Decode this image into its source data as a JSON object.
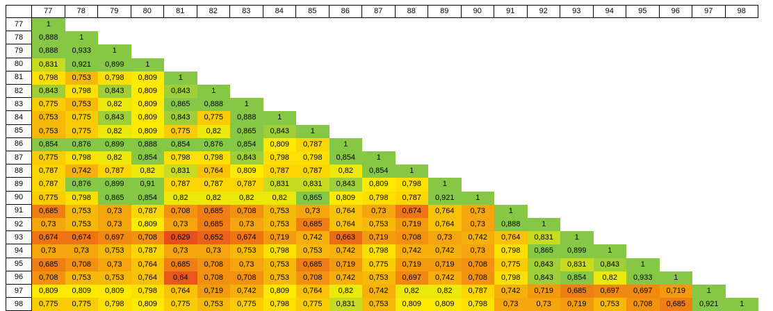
{
  "chart_data": {
    "type": "heatmap",
    "labels": [
      "77",
      "78",
      "79",
      "80",
      "81",
      "82",
      "83",
      "84",
      "85",
      "86",
      "87",
      "88",
      "89",
      "90",
      "91",
      "92",
      "93",
      "94",
      "95",
      "96",
      "97",
      "98"
    ],
    "values": [
      [
        "1"
      ],
      [
        "0,888",
        "1"
      ],
      [
        "0,888",
        "0,933",
        "1"
      ],
      [
        "0,831",
        "0,921",
        "0,899",
        "1"
      ],
      [
        "0,798",
        "0,753",
        "0,798",
        "0,809",
        "1"
      ],
      [
        "0,843",
        "0,798",
        "0,843",
        "0,809",
        "0,843",
        "1"
      ],
      [
        "0,775",
        "0,753",
        "0,82",
        "0,809",
        "0,865",
        "0,888",
        "1"
      ],
      [
        "0,753",
        "0,775",
        "0,843",
        "0,809",
        "0,843",
        "0,775",
        "0,888",
        "1"
      ],
      [
        "0,753",
        "0,775",
        "0,82",
        "0,809",
        "0,775",
        "0,82",
        "0,865",
        "0,843",
        "1"
      ],
      [
        "0,854",
        "0,876",
        "0,899",
        "0,888",
        "0,854",
        "0,876",
        "0,854",
        "0,809",
        "0,787",
        "1"
      ],
      [
        "0,775",
        "0,798",
        "0,82",
        "0,854",
        "0,798",
        "0,798",
        "0,843",
        "0,798",
        "0,798",
        "0,854",
        "1"
      ],
      [
        "0,787",
        "0,742",
        "0,787",
        "0,82",
        "0,831",
        "0,764",
        "0,809",
        "0,787",
        "0,787",
        "0,82",
        "0,854",
        "1"
      ],
      [
        "0,787",
        "0,876",
        "0,899",
        "0,91",
        "0,787",
        "0,787",
        "0,787",
        "0,831",
        "0,831",
        "0,843",
        "0,809",
        "0,798",
        "1"
      ],
      [
        "0,775",
        "0,798",
        "0,865",
        "0,854",
        "0,82",
        "0,82",
        "0,82",
        "0,82",
        "0,865",
        "0,809",
        "0,798",
        "0,787",
        "0,921",
        "1"
      ],
      [
        "0,685",
        "0,753",
        "0,73",
        "0,787",
        "0,708",
        "0,685",
        "0,708",
        "0,753",
        "0,73",
        "0,764",
        "0,73",
        "0,674",
        "0,764",
        "0,73",
        "1"
      ],
      [
        "0,73",
        "0,753",
        "0,73",
        "0,809",
        "0,73",
        "0,685",
        "0,73",
        "0,753",
        "0,685",
        "0,764",
        "0,753",
        "0,719",
        "0,764",
        "0,73",
        "0,888",
        "1"
      ],
      [
        "0,674",
        "0,674",
        "0,697",
        "0,708",
        "0,629",
        "0,652",
        "0,674",
        "0,719",
        "0,742",
        "0,663",
        "0,719",
        "0,708",
        "0,73",
        "0,742",
        "0,764",
        "0,831",
        "1"
      ],
      [
        "0,73",
        "0,73",
        "0,753",
        "0,787",
        "0,73",
        "0,73",
        "0,753",
        "0,798",
        "0,753",
        "0,742",
        "0,798",
        "0,742",
        "0,742",
        "0,73",
        "0,798",
        "0,865",
        "0,899",
        "1"
      ],
      [
        "0,685",
        "0,708",
        "0,73",
        "0,764",
        "0,685",
        "0,708",
        "0,73",
        "0,753",
        "0,685",
        "0,719",
        "0,775",
        "0,719",
        "0,719",
        "0,708",
        "0,775",
        "0,843",
        "0,831",
        "0,843",
        "1"
      ],
      [
        "0,708",
        "0,753",
        "0,753",
        "0,764",
        "0,64",
        "0,708",
        "0,708",
        "0,753",
        "0,708",
        "0,742",
        "0,753",
        "0,697",
        "0,742",
        "0,708",
        "0,798",
        "0,843",
        "0,854",
        "0,82",
        "0,933",
        "1"
      ],
      [
        "0,809",
        "0,809",
        "0,809",
        "0,798",
        "0,764",
        "0,719",
        "0,742",
        "0,809",
        "0,764",
        "0,82",
        "0,742",
        "0,82",
        "0,82",
        "0,787",
        "0,742",
        "0,719",
        "0,685",
        "0,697",
        "0,697",
        "0,719",
        "1"
      ],
      [
        "0,775",
        "0,775",
        "0,798",
        "0,809",
        "0,775",
        "0,753",
        "0,775",
        "0,798",
        "0,775",
        "0,831",
        "0,753",
        "0,809",
        "0,809",
        "0,798",
        "0,73",
        "0,73",
        "0,719",
        "0,753",
        "0,708",
        "0,685",
        "0,921",
        "1"
      ]
    ],
    "color_scale": {
      "low": "#e84d1c",
      "mid": "#ffee00",
      "high": "#86c846"
    }
  }
}
